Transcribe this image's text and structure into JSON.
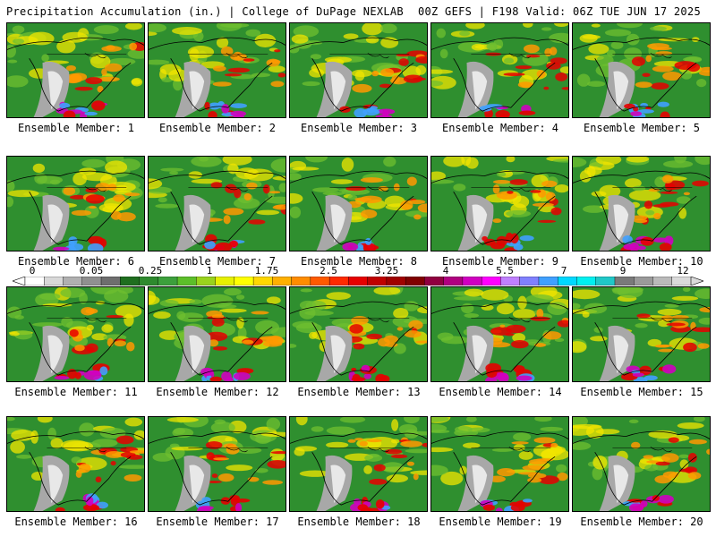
{
  "header": {
    "title_left": "Precipitation Accumulation (in.) | College of DuPage NEXLAB",
    "title_right": "00Z GEFS | F198 Valid: 06Z TUE JUN 17 2025"
  },
  "panels": [
    {
      "label": "Ensemble Member: 1"
    },
    {
      "label": "Ensemble Member: 2"
    },
    {
      "label": "Ensemble Member: 3"
    },
    {
      "label": "Ensemble Member: 4"
    },
    {
      "label": "Ensemble Member: 5"
    },
    {
      "label": "Ensemble Member: 6"
    },
    {
      "label": "Ensemble Member: 7"
    },
    {
      "label": "Ensemble Member: 8"
    },
    {
      "label": "Ensemble Member: 9"
    },
    {
      "label": "Ensemble Member: 10"
    },
    {
      "label": "Ensemble Member: 11"
    },
    {
      "label": "Ensemble Member: 12"
    },
    {
      "label": "Ensemble Member: 13"
    },
    {
      "label": "Ensemble Member: 14"
    },
    {
      "label": "Ensemble Member: 15"
    },
    {
      "label": "Ensemble Member: 16"
    },
    {
      "label": "Ensemble Member: 17"
    },
    {
      "label": "Ensemble Member: 18"
    },
    {
      "label": "Ensemble Member: 19"
    },
    {
      "label": "Ensemble Member: 20"
    }
  ],
  "colorbar": {
    "tick_labels": [
      "0",
      "0.05",
      "0.25",
      "1",
      "1.75",
      "2.5",
      "3.25",
      "4",
      "5.5",
      "7",
      "9",
      "12"
    ],
    "colors": [
      "#ffffff",
      "#d8d8d8",
      "#b0b0b0",
      "#909090",
      "#6e6e6e",
      "#1f6e1f",
      "#2e8a2e",
      "#3ca03c",
      "#5cbf2a",
      "#9ad31d",
      "#e6f000",
      "#ffff00",
      "#ffd700",
      "#ffb000",
      "#ff8c00",
      "#ff5a00",
      "#ff2a00",
      "#e60000",
      "#c00000",
      "#a00000",
      "#800000",
      "#900040",
      "#b00080",
      "#d000c0",
      "#ff00ff",
      "#c080ff",
      "#8080ff",
      "#40a0ff",
      "#00d8ff",
      "#00f0f0",
      "#20c8c8",
      "#7a7a7a",
      "#9a9a9a",
      "#bababa",
      "#dadada"
    ]
  },
  "map_colors": {
    "green": "#2f8f2f",
    "light_green": "#6fbf30",
    "yellow": "#f2e600",
    "orange": "#ff9900",
    "red": "#e60000",
    "magenta": "#d000c0",
    "gray": "#a8a8a8",
    "white": "#eeeeee",
    "blue": "#40a0ff"
  }
}
